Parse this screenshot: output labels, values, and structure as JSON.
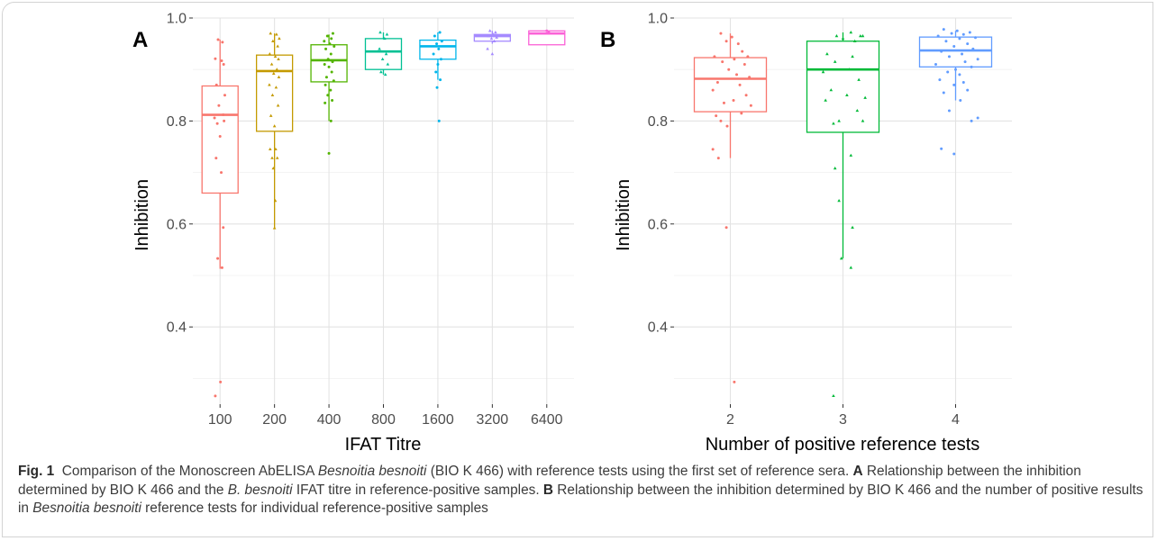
{
  "figure": {
    "panels": [
      {
        "letter": "A",
        "ylabel": "Inhibition",
        "xlabel": "IFAT Titre"
      },
      {
        "letter": "B",
        "ylabel": "Inhibition",
        "xlabel": "Number of positive reference tests"
      }
    ]
  },
  "caption": {
    "fig_label": "Fig. 1",
    "p1": "Comparison of the Monoscreen AbELISA ",
    "p1_italic": "Besnoitia besnoiti",
    "p2": " (BIO K 466) with reference tests using the first set of reference sera. ",
    "a_label": "A",
    "p3": " Relationship between the inhibition determined by BIO K 466 and the ",
    "p3_italic": "B. besnoiti",
    "p4": " IFAT titre in reference-positive samples. ",
    "b_label": "B",
    "p5": " Relationship between the inhibition determined by BIO K 466 and the number of positive results in ",
    "p5_italic": "Besnoitia besnoiti",
    "p6": " reference tests for individual reference-positive samples"
  },
  "chart_data": [
    {
      "type": "box",
      "panel": "A",
      "xlabel": "IFAT Titre",
      "ylabel": "Inhibition",
      "ylim": [
        0.25,
        1.0
      ],
      "yticks": [
        0.4,
        0.6,
        0.8,
        1.0
      ],
      "ytick_labels": [
        "0.4",
        "0.6",
        "0.8",
        "1.0"
      ],
      "categories": [
        "100",
        "200",
        "400",
        "800",
        "1600",
        "3200",
        "6400"
      ],
      "grid": true,
      "legend": "none",
      "boxes": [
        {
          "q1": 0.66,
          "median": 0.812,
          "q3": 0.868,
          "whisker_low": 0.513,
          "whisker_high": 0.958,
          "color": "#F8766D"
        },
        {
          "q1": 0.78,
          "median": 0.897,
          "q3": 0.928,
          "whisker_low": 0.59,
          "whisker_high": 0.97,
          "color": "#C49A00"
        },
        {
          "q1": 0.876,
          "median": 0.918,
          "q3": 0.948,
          "whisker_low": 0.8,
          "whisker_high": 0.968,
          "color": "#53B400"
        },
        {
          "q1": 0.9,
          "median": 0.935,
          "q3": 0.96,
          "whisker_low": 0.89,
          "whisker_high": 0.972,
          "color": "#00C094"
        },
        {
          "q1": 0.92,
          "median": 0.945,
          "q3": 0.957,
          "whisker_low": 0.88,
          "whisker_high": 0.972,
          "color": "#00B6EB"
        },
        {
          "q1": 0.955,
          "median": 0.965,
          "q3": 0.968,
          "whisker_low": 0.95,
          "whisker_high": 0.975,
          "color": "#A58AFF"
        },
        {
          "q1": 0.948,
          "median": 0.97,
          "q3": 0.975,
          "whisker_low": 0.948,
          "whisker_high": 0.975,
          "color": "#FB61D7"
        }
      ],
      "points": [
        [
          [
            -0.05,
            0.958
          ],
          [
            0.06,
            0.953
          ],
          [
            -0.12,
            0.921
          ],
          [
            0.04,
            0.917
          ],
          [
            0.09,
            0.91
          ],
          [
            -0.09,
            0.87
          ],
          [
            0.12,
            0.85
          ],
          [
            -0.03,
            0.83
          ],
          [
            0.08,
            0.812
          ],
          [
            -0.14,
            0.806
          ],
          [
            0.1,
            0.8
          ],
          [
            -0.07,
            0.795
          ],
          [
            0.0,
            0.77
          ],
          [
            -0.1,
            0.728
          ],
          [
            0.03,
            0.7
          ],
          [
            0.08,
            0.593
          ],
          [
            -0.06,
            0.533
          ],
          [
            0.05,
            0.515
          ],
          [
            0.01,
            0.293
          ],
          [
            -0.12,
            0.266
          ]
        ],
        [
          [
            -0.1,
            0.97
          ],
          [
            0.05,
            0.968
          ],
          [
            0.12,
            0.96
          ],
          [
            -0.04,
            0.955
          ],
          [
            0.08,
            0.945
          ],
          [
            -0.12,
            0.93
          ],
          [
            0.02,
            0.925
          ],
          [
            0.1,
            0.92
          ],
          [
            -0.07,
            0.91
          ],
          [
            0.06,
            0.9
          ],
          [
            -0.02,
            0.892
          ],
          [
            0.11,
            0.885
          ],
          [
            -0.13,
            0.87
          ],
          [
            0.04,
            0.865
          ],
          [
            -0.05,
            0.85
          ],
          [
            0.09,
            0.83
          ],
          [
            -0.09,
            0.81
          ],
          [
            0.0,
            0.79
          ],
          [
            -0.11,
            0.745
          ],
          [
            0.03,
            0.745
          ],
          [
            -0.06,
            0.728
          ],
          [
            0.07,
            0.728
          ],
          [
            -0.03,
            0.708
          ],
          [
            0.02,
            0.645
          ],
          [
            0.0,
            0.592
          ]
        ],
        [
          [
            0.1,
            0.97
          ],
          [
            -0.04,
            0.965
          ],
          [
            0.06,
            0.96
          ],
          [
            -0.12,
            0.955
          ],
          [
            0.02,
            0.95
          ],
          [
            0.13,
            0.945
          ],
          [
            -0.08,
            0.94
          ],
          [
            0.05,
            0.93
          ],
          [
            -0.02,
            0.92
          ],
          [
            0.09,
            0.915
          ],
          [
            -0.11,
            0.91
          ],
          [
            0.0,
            0.905
          ],
          [
            0.07,
            0.895
          ],
          [
            -0.06,
            0.885
          ],
          [
            0.12,
            0.878
          ],
          [
            -0.09,
            0.87
          ],
          [
            0.04,
            0.86
          ],
          [
            -0.03,
            0.85
          ],
          [
            0.08,
            0.84
          ],
          [
            -0.1,
            0.835
          ],
          [
            0.05,
            0.8
          ],
          [
            0.0,
            0.737
          ]
        ],
        [
          [
            -0.08,
            0.972
          ],
          [
            0.09,
            0.968
          ],
          [
            0.03,
            0.96
          ],
          [
            -0.1,
            0.94
          ],
          [
            0.07,
            0.93
          ],
          [
            -0.02,
            0.92
          ],
          [
            0.11,
            0.91
          ],
          [
            -0.06,
            0.895
          ],
          [
            0.05,
            0.89
          ]
        ],
        [
          [
            0.05,
            0.972
          ],
          [
            -0.08,
            0.965
          ],
          [
            0.1,
            0.955
          ],
          [
            -0.03,
            0.95
          ],
          [
            0.02,
            0.94
          ],
          [
            -0.11,
            0.93
          ],
          [
            0.08,
            0.92
          ],
          [
            0.0,
            0.91
          ],
          [
            -0.05,
            0.895
          ],
          [
            0.06,
            0.88
          ],
          [
            -0.02,
            0.865
          ],
          [
            0.03,
            0.8
          ]
        ],
        [
          [
            -0.06,
            0.975
          ],
          [
            0.08,
            0.972
          ],
          [
            0.02,
            0.968
          ],
          [
            -0.1,
            0.965
          ],
          [
            0.11,
            0.962
          ],
          [
            -0.02,
            0.96
          ],
          [
            0.05,
            0.955
          ],
          [
            -0.12,
            0.94
          ],
          [
            0.0,
            0.93
          ]
        ],
        [
          [
            0.0,
            0.975
          ],
          [
            0.05,
            0.972
          ]
        ]
      ]
    },
    {
      "type": "box",
      "panel": "B",
      "xlabel": "Number of positive reference tests",
      "ylabel": "Inhibition",
      "ylim": [
        0.25,
        1.0
      ],
      "yticks": [
        0.4,
        0.6,
        0.8,
        1.0
      ],
      "ytick_labels": [
        "0.4",
        "0.6",
        "0.8",
        "1.0"
      ],
      "categories": [
        "2",
        "3",
        "4"
      ],
      "grid": true,
      "legend": "none",
      "boxes": [
        {
          "q1": 0.818,
          "median": 0.882,
          "q3": 0.923,
          "whisker_low": 0.728,
          "whisker_high": 0.97,
          "color": "#F8766D"
        },
        {
          "q1": 0.778,
          "median": 0.9,
          "q3": 0.955,
          "whisker_low": 0.533,
          "whisker_high": 0.972,
          "color": "#00BA38"
        },
        {
          "q1": 0.905,
          "median": 0.937,
          "q3": 0.963,
          "whisker_low": 0.84,
          "whisker_high": 0.975,
          "color": "#619CFF"
        }
      ],
      "points": [
        [
          [
            -0.12,
            0.97
          ],
          [
            0.02,
            0.963
          ],
          [
            -0.05,
            0.955
          ],
          [
            0.1,
            0.95
          ],
          [
            0.15,
            0.935
          ],
          [
            -0.2,
            0.925
          ],
          [
            0.05,
            0.92
          ],
          [
            0.22,
            0.925
          ],
          [
            -0.1,
            0.915
          ],
          [
            0.18,
            0.91
          ],
          [
            -0.02,
            0.9
          ],
          [
            0.08,
            0.89
          ],
          [
            0.24,
            0.885
          ],
          [
            -0.16,
            0.875
          ],
          [
            0.12,
            0.87
          ],
          [
            -0.22,
            0.86
          ],
          [
            0.2,
            0.85
          ],
          [
            0.04,
            0.84
          ],
          [
            -0.08,
            0.835
          ],
          [
            0.26,
            0.83
          ],
          [
            -0.18,
            0.81
          ],
          [
            0.14,
            0.815
          ],
          [
            -0.12,
            0.8
          ],
          [
            -0.04,
            0.79
          ],
          [
            -0.22,
            0.745
          ],
          [
            -0.15,
            0.728
          ],
          [
            -0.05,
            0.593
          ],
          [
            0.05,
            0.293
          ]
        ],
        [
          [
            0.1,
            0.972
          ],
          [
            -0.08,
            0.965
          ],
          [
            0.22,
            0.965
          ],
          [
            0.0,
            0.96
          ],
          [
            0.15,
            0.955
          ],
          [
            0.25,
            0.965
          ],
          [
            -0.2,
            0.93
          ],
          [
            0.12,
            0.925
          ],
          [
            -0.1,
            0.915
          ],
          [
            0.08,
            0.9
          ],
          [
            -0.25,
            0.895
          ],
          [
            0.2,
            0.88
          ],
          [
            -0.15,
            0.86
          ],
          [
            0.05,
            0.85
          ],
          [
            -0.22,
            0.84
          ],
          [
            0.28,
            0.845
          ],
          [
            0.18,
            0.82
          ],
          [
            -0.05,
            0.8
          ],
          [
            0.25,
            0.8
          ],
          [
            -0.12,
            0.795
          ],
          [
            0.1,
            0.733
          ],
          [
            -0.05,
            0.645
          ],
          [
            0.12,
            0.593
          ],
          [
            -0.02,
            0.533
          ],
          [
            0.1,
            0.515
          ],
          [
            -0.1,
            0.708
          ],
          [
            -0.12,
            0.266
          ]
        ],
        [
          [
            -0.15,
            0.978
          ],
          [
            0.02,
            0.975
          ],
          [
            0.18,
            0.972
          ],
          [
            -0.05,
            0.97
          ],
          [
            0.1,
            0.968
          ],
          [
            -0.22,
            0.965
          ],
          [
            0.25,
            0.962
          ],
          [
            0.05,
            0.96
          ],
          [
            -0.12,
            0.955
          ],
          [
            0.15,
            0.95
          ],
          [
            -0.02,
            0.945
          ],
          [
            0.22,
            0.94
          ],
          [
            -0.18,
            0.935
          ],
          [
            0.08,
            0.93
          ],
          [
            -0.08,
            0.925
          ],
          [
            0.28,
            0.92
          ],
          [
            0.12,
            0.915
          ],
          [
            -0.25,
            0.91
          ],
          [
            0.2,
            0.905
          ],
          [
            0.0,
            0.9
          ],
          [
            -0.1,
            0.895
          ],
          [
            0.05,
            0.89
          ],
          [
            -0.2,
            0.88
          ],
          [
            0.1,
            0.875
          ],
          [
            -0.02,
            0.87
          ],
          [
            0.15,
            0.86
          ],
          [
            -0.15,
            0.855
          ],
          [
            0.06,
            0.84
          ],
          [
            -0.08,
            0.82
          ],
          [
            0.2,
            0.8
          ],
          [
            0.28,
            0.806
          ],
          [
            -0.18,
            0.746
          ],
          [
            -0.02,
            0.736
          ]
        ]
      ]
    }
  ]
}
